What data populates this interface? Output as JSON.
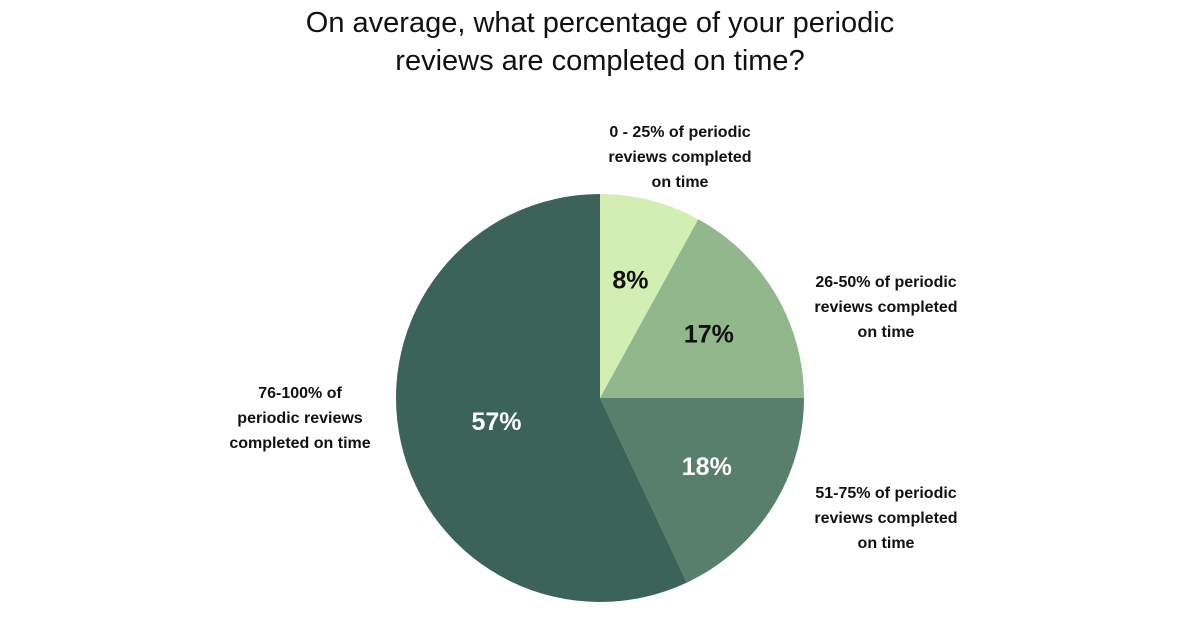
{
  "chart_data": {
    "type": "pie",
    "title": "On average, what percentage of your periodic\nreviews are completed on time?",
    "start": "top, clockwise",
    "slices": [
      {
        "label": "0 - 25% of periodic\nreviews completed\non time",
        "value": 8,
        "data_label": "8%",
        "color": "#d3eeb3",
        "label_color": "#111111"
      },
      {
        "label": "26-50% of periodic\nreviews completed\non time",
        "value": 17,
        "data_label": "17%",
        "color": "#93b78c",
        "label_color": "#111111"
      },
      {
        "label": "51-75% of periodic\nreviews completed\non time",
        "value": 18,
        "data_label": "18%",
        "color": "#587e6c",
        "label_color": "#ffffff"
      },
      {
        "label": "76-100% of\nperiodic reviews\ncompleted on time",
        "value": 57,
        "data_label": "57%",
        "color": "#3c6359",
        "label_color": "#ffffff"
      }
    ]
  }
}
